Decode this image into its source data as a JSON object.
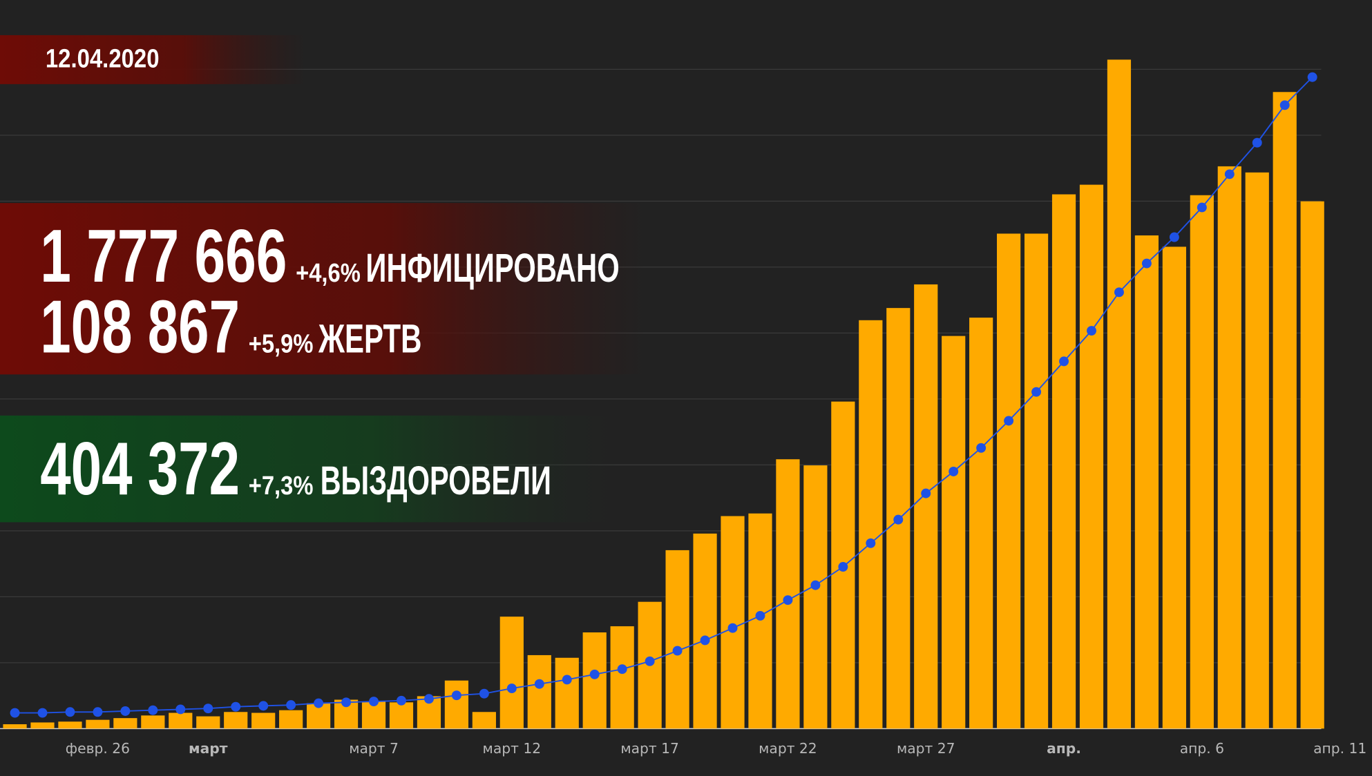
{
  "chart_data": {
    "type": "bar",
    "categories": [
      null,
      null,
      null,
      "февр. 26",
      null,
      null,
      null,
      "март",
      null,
      null,
      null,
      null,
      null,
      "март 7",
      null,
      null,
      null,
      null,
      "март 12",
      null,
      null,
      null,
      null,
      "март 17",
      null,
      null,
      null,
      null,
      "март 22",
      null,
      null,
      null,
      null,
      "март 27",
      null,
      null,
      null,
      null,
      "апр.",
      null,
      null,
      null,
      null,
      "апр. 6",
      null,
      null,
      null,
      null,
      "апр. 11"
    ],
    "series": [
      {
        "type": "bar",
        "color": "#ffaa00",
        "values": [
          660,
          930,
          1060,
          1330,
          1590,
          1990,
          2390,
          1860,
          2520,
          2390,
          2790,
          3850,
          4380,
          4110,
          3980,
          4910,
          7290,
          2520,
          16980,
          11140,
          10740,
          14590,
          15520,
          19230,
          27060,
          29580,
          32230,
          32630,
          40850,
          39920,
          49600,
          61940,
          63790,
          67370,
          59550,
          62330,
          75070,
          75070,
          81030,
          82490,
          101460,
          74800,
          73080,
          80900,
          85280,
          84350,
          96550,
          79970,
          null
        ]
      },
      {
        "type": "line",
        "axis": "y2",
        "color": "#1f52e6",
        "values": [
          47700,
          47700,
          50400,
          50400,
          53100,
          55700,
          58400,
          61000,
          66300,
          69000,
          71600,
          76900,
          79600,
          82200,
          84900,
          90200,
          100800,
          106100,
          122000,
          135300,
          148500,
          164500,
          180400,
          204200,
          236100,
          267900,
          305000,
          342200,
          389900,
          435000,
          490700,
          562300,
          633900,
          713500,
          779800,
          851400,
          933700,
          1021200,
          1114000,
          1206900,
          1323600,
          1411100,
          1490700,
          1580900,
          1681700,
          1777200,
          1891200,
          1976100,
          null
        ]
      }
    ],
    "ylim": [
      0,
      110000
    ],
    "yticks": [
      0,
      10000,
      20000,
      30000,
      40000,
      50000,
      60000,
      70000,
      80000,
      90000,
      100000
    ],
    "y2lim": [
      0,
      2200000
    ],
    "grid": true
  },
  "overlay": {
    "date": "12.04.2020",
    "stats": [
      {
        "value": "1 777 666",
        "change": "+4,6%",
        "label": "ИНФИЦИРОВАНО"
      },
      {
        "value": "108 867",
        "change": "+5,9%",
        "label": "ЖЕРТВ"
      },
      {
        "value": "404 372",
        "change": "+7,3%",
        "label": "ВЫЗДОРОВЕЛИ"
      }
    ]
  }
}
